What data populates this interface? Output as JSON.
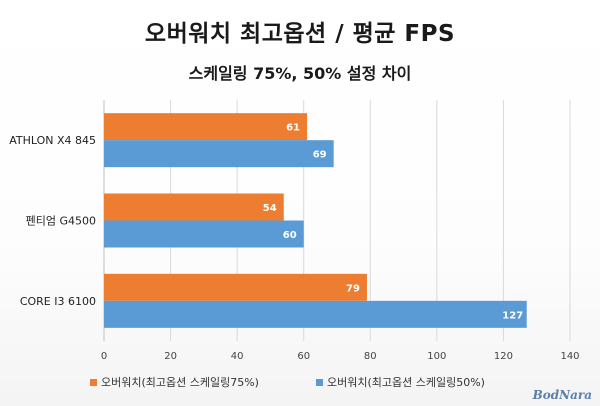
{
  "chart_data": {
    "type": "bar",
    "orientation": "horizontal",
    "title": "오버워치 최고옵션 / 평균 FPS",
    "subtitle": "스케일링 75%, 50% 설정 차이",
    "categories": [
      "ATHLON X4 845",
      "펜티엄 G4500",
      "CORE I3 6100"
    ],
    "series": [
      {
        "name": "오버워치(최고옵션 스케일링75%)",
        "values": [
          61,
          54,
          79
        ],
        "color": "#ed7d31"
      },
      {
        "name": "오버워치(최고옵션 스케일링50%)",
        "values": [
          69,
          60,
          127
        ],
        "color": "#5b9bd5"
      }
    ],
    "xlim": [
      0,
      140
    ],
    "xticks": [
      0,
      20,
      40,
      60,
      80,
      100,
      120,
      140
    ],
    "grid": true,
    "legend_position": "bottom"
  },
  "watermark": "BodNara"
}
